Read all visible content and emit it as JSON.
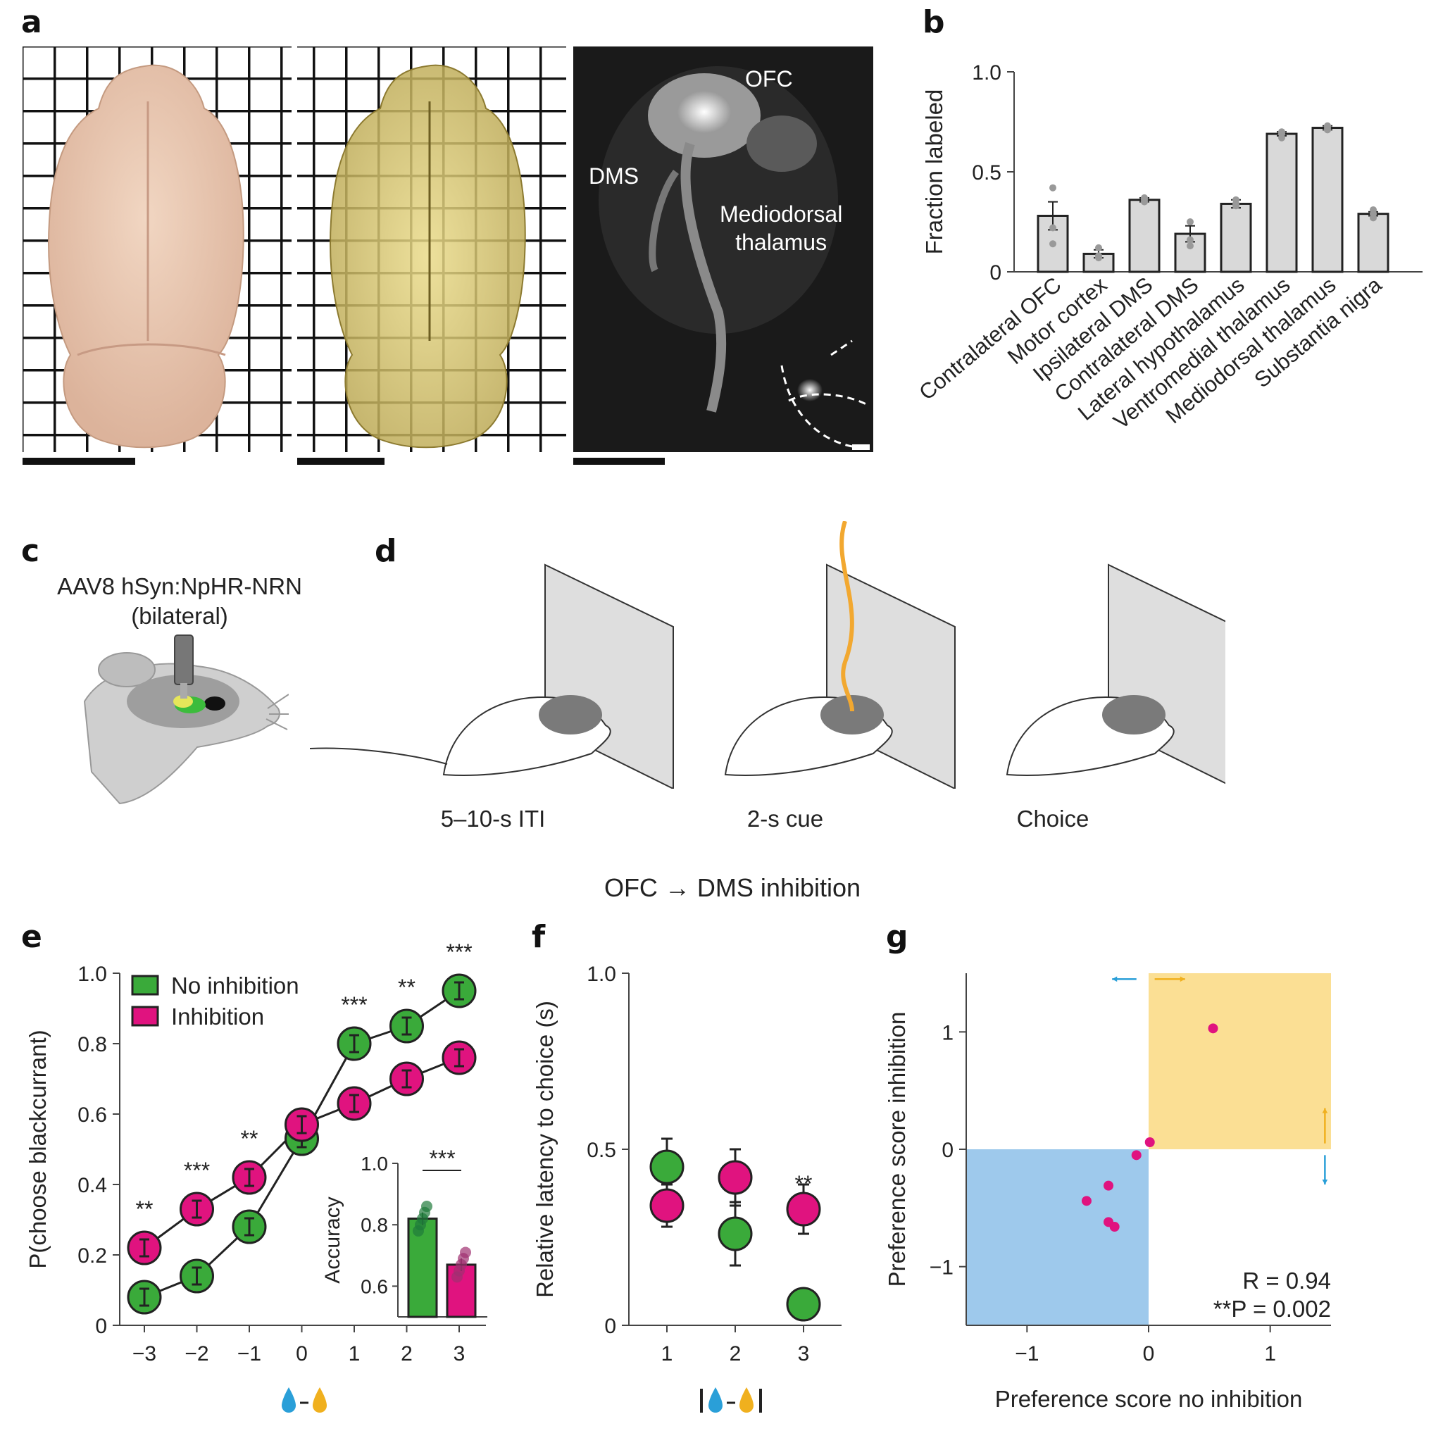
{
  "panels": {
    "a": "a",
    "b": "b",
    "c": "c",
    "d": "d",
    "e": "e",
    "f": "f",
    "g": "g"
  },
  "panel_a": {
    "labels": {
      "ofc": "OFC",
      "dms": "DMS",
      "md_line1": "Mediodorsal",
      "md_line2": "thalamus"
    }
  },
  "panel_c": {
    "line1": "AAV8 hSyn:NpHR-NRN",
    "line2": "(bilateral)"
  },
  "panel_d": {
    "stages": [
      "5–10-s ITI",
      "2-s cue",
      "Choice"
    ]
  },
  "section_title": "OFC → DMS inhibition",
  "colors": {
    "green": "#3aaa3a",
    "magenta": "#e0137f",
    "bar": "#d9d9d9",
    "blue_quadrant": "#9ec9ec",
    "yellow_quadrant": "#fbdf94",
    "arrow_blue": "#2a9fd8",
    "arrow_yellow": "#f0b01e"
  },
  "chart_data": [
    {
      "id": "b",
      "type": "bar",
      "ylabel": "Fraction labeled",
      "ylim": [
        0,
        1.0
      ],
      "yticks": [
        "0",
        "0.5",
        "1.0"
      ],
      "categories": [
        "Contralateral OFC",
        "Motor cortex",
        "Ipsilateral DMS",
        "Contralateral DMS",
        "Lateral hypothalamus",
        "Ventromedial thalamus",
        "Mediodorsal thalamus",
        "Substantia nigra"
      ],
      "values": [
        0.28,
        0.09,
        0.36,
        0.19,
        0.34,
        0.69,
        0.72,
        0.29
      ],
      "sem": [
        0.07,
        0.02,
        0.01,
        0.04,
        0.02,
        0.01,
        0.01,
        0.01
      ],
      "points": [
        [
          0.42,
          0.22,
          0.14
        ],
        [
          0.12,
          0.08,
          0.07
        ],
        [
          0.37,
          0.36,
          0.35
        ],
        [
          0.25,
          0.16,
          0.13
        ],
        [
          0.36,
          0.34,
          0.33
        ],
        [
          0.7,
          0.69,
          0.67
        ],
        [
          0.73,
          0.72,
          0.71
        ],
        [
          0.31,
          0.29,
          0.27
        ]
      ]
    },
    {
      "id": "e",
      "type": "line",
      "ylabel": "P(choose blackcurrant)",
      "ylim": [
        0,
        1.0
      ],
      "yticks": [
        "0",
        "0.2",
        "0.4",
        "0.6",
        "0.8",
        "1.0"
      ],
      "x": [
        -3,
        -2,
        -1,
        0,
        1,
        2,
        3
      ],
      "xticks": [
        "−3",
        "−2",
        "−1",
        "0",
        "1",
        "2",
        "3"
      ],
      "series": [
        {
          "name": "No inhibition",
          "color": "#3aaa3a",
          "values": [
            0.08,
            0.14,
            0.28,
            0.53,
            0.8,
            0.85,
            0.95
          ],
          "sem": [
            0.02,
            0.01,
            0.02,
            0.02,
            0.02,
            0.01,
            0.01
          ]
        },
        {
          "name": "Inhibition",
          "color": "#e0137f",
          "values": [
            0.22,
            0.33,
            0.42,
            0.57,
            0.63,
            0.7,
            0.76
          ],
          "sem": [
            0.02,
            0.02,
            0.02,
            0.02,
            0.02,
            0.02,
            0.05
          ]
        }
      ],
      "significance": [
        {
          "x": -3,
          "label": "**"
        },
        {
          "x": -2,
          "label": "***"
        },
        {
          "x": -1,
          "label": "**"
        },
        {
          "x": 1,
          "label": "***"
        },
        {
          "x": 2,
          "label": "**"
        },
        {
          "x": 3,
          "label": "***"
        }
      ],
      "inset": {
        "ylabel": "Accuracy",
        "ylim": [
          0.5,
          1.0
        ],
        "yticks": [
          "0.6",
          "0.8",
          "1.0"
        ],
        "values": [
          0.82,
          0.67
        ],
        "sem": [
          0.02,
          0.02
        ],
        "significance": "***"
      }
    },
    {
      "id": "f",
      "type": "scatter",
      "ylabel": "Relative latency to choice (s)",
      "ylim": [
        0,
        1.0
      ],
      "yticks": [
        "0",
        "0.5",
        "1.0"
      ],
      "x": [
        1,
        2,
        3
      ],
      "xticks": [
        "1",
        "2",
        "3"
      ],
      "series": [
        {
          "name": "No inhibition",
          "color": "#3aaa3a",
          "values": [
            0.45,
            0.26,
            0.06
          ],
          "sem": [
            0.08,
            0.09,
            0.02
          ]
        },
        {
          "name": "Inhibition",
          "color": "#e0137f",
          "values": [
            0.34,
            0.42,
            0.33
          ],
          "sem": [
            0.06,
            0.08,
            0.07
          ]
        }
      ],
      "significance": [
        {
          "x": 3,
          "label": "**"
        }
      ]
    },
    {
      "id": "g",
      "type": "scatter",
      "xlabel": "Preference score no inhibition",
      "ylabel": "Preference score inhibition",
      "xlim": [
        -1.5,
        1.5
      ],
      "ylim": [
        -1.5,
        1.5
      ],
      "xticks": [
        "−1",
        "0",
        "1"
      ],
      "yticks": [
        "−1",
        "0",
        "1"
      ],
      "points": [
        [
          0.53,
          1.03
        ],
        [
          0.01,
          0.06
        ],
        [
          -0.1,
          -0.05
        ],
        [
          -0.33,
          -0.31
        ],
        [
          -0.51,
          -0.44
        ],
        [
          -0.33,
          -0.62
        ],
        [
          -0.28,
          -0.66
        ]
      ],
      "color": "#e0137f",
      "stat_r": "R = 0.94",
      "stat_p": "**P = 0.002"
    }
  ]
}
